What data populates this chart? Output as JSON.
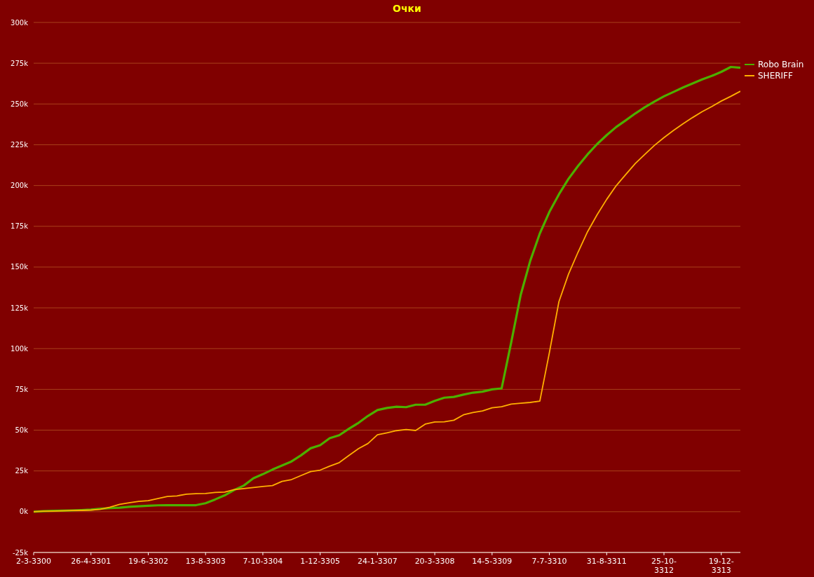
{
  "chart_data": {
    "type": "line",
    "title": "Очки",
    "categories": [
      "2-3-3300",
      null,
      null,
      null,
      null,
      null,
      "26-4-3301",
      null,
      null,
      null,
      null,
      null,
      "19-6-3302",
      null,
      null,
      null,
      null,
      null,
      "13-8-3303",
      null,
      null,
      null,
      null,
      null,
      "7-10-3304",
      null,
      null,
      null,
      null,
      null,
      "1-12-3305",
      null,
      null,
      null,
      null,
      null,
      "24-1-3307",
      null,
      null,
      null,
      null,
      null,
      "20-3-3308",
      null,
      null,
      null,
      null,
      null,
      "14-5-3309",
      null,
      null,
      null,
      null,
      null,
      "7-7-3310",
      null,
      null,
      null,
      null,
      null,
      "31-8-3311",
      null,
      null,
      null,
      null,
      null,
      "25-10-3312",
      null,
      null,
      null,
      null,
      null,
      "19-12-3313",
      null,
      null
    ],
    "series": [
      {
        "name": "Robo Brain",
        "color": "#4cb000",
        "values": [
          0,
          300,
          500,
          600,
          800,
          1000,
          1300,
          1800,
          2200,
          2500,
          3000,
          3300,
          3600,
          3900,
          4000,
          4000,
          4000,
          4000,
          5200,
          7500,
          10000,
          13300,
          16000,
          20500,
          23000,
          25800,
          28300,
          30800,
          34600,
          38900,
          40800,
          45100,
          46900,
          50800,
          54400,
          58700,
          62300,
          63600,
          64400,
          64100,
          65600,
          65600,
          68000,
          69900,
          70400,
          71800,
          73000,
          73600,
          75000,
          75600,
          103700,
          133000,
          153900,
          170600,
          183800,
          194600,
          204100,
          212000,
          219100,
          225400,
          230900,
          235900,
          240000,
          244200,
          248000,
          251500,
          254700,
          257400,
          260100,
          262600,
          265100,
          267200,
          269700,
          272700,
          272200
        ]
      },
      {
        "name": "SHERIFF",
        "color": "#ffb000",
        "values": [
          0,
          300,
          300,
          500,
          700,
          800,
          1000,
          1500,
          2800,
          4500,
          5500,
          6300,
          6800,
          8000,
          9300,
          9700,
          10700,
          11100,
          11200,
          11800,
          12000,
          13500,
          14200,
          14800,
          15500,
          16000,
          18600,
          19700,
          22200,
          24600,
          25500,
          27900,
          30100,
          34400,
          38600,
          41800,
          47200,
          48400,
          49700,
          50400,
          49800,
          53700,
          55000,
          55100,
          56100,
          59400,
          60800,
          61800,
          63700,
          64400,
          66000,
          66500,
          67000,
          67800,
          97500,
          128800,
          145600,
          159100,
          171700,
          182100,
          191500,
          199900,
          206800,
          213500,
          219100,
          224600,
          229400,
          233800,
          237900,
          241700,
          245300,
          248400,
          251800,
          254700,
          257800
        ]
      }
    ],
    "ylim": [
      -25000,
      300000
    ],
    "yticks": [
      {
        "value": -25000,
        "label": "-25k"
      },
      {
        "value": 0,
        "label": "0k"
      },
      {
        "value": 25000,
        "label": "25k"
      },
      {
        "value": 50000,
        "label": "50k"
      },
      {
        "value": 75000,
        "label": "75k"
      },
      {
        "value": 100000,
        "label": "100k"
      },
      {
        "value": 125000,
        "label": "125k"
      },
      {
        "value": 150000,
        "label": "150k"
      },
      {
        "value": 175000,
        "label": "175k"
      },
      {
        "value": 200000,
        "label": "200k"
      },
      {
        "value": 225000,
        "label": "225k"
      },
      {
        "value": 250000,
        "label": "250k"
      },
      {
        "value": 275000,
        "label": "275k"
      },
      {
        "value": 300000,
        "label": "300k"
      }
    ],
    "grid": "y",
    "legend": "top right",
    "marker": "none",
    "line_style": "solid"
  }
}
